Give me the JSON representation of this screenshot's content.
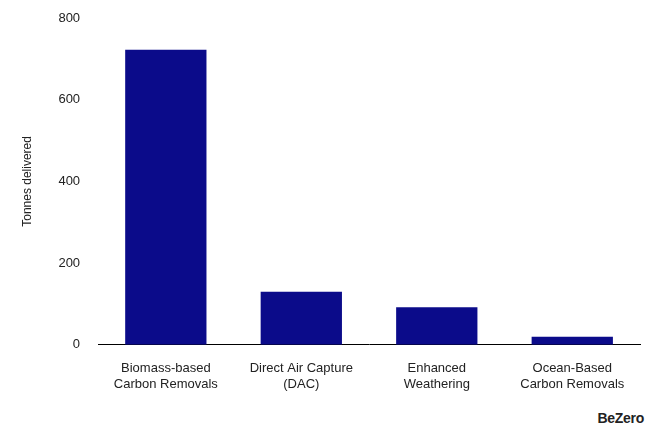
{
  "chart_data": {
    "type": "bar",
    "y_label": "Tonnes delivered",
    "categories": [
      "Biomass-based\nCarbon Removals",
      "Direct Air Capture\n(DAC)",
      "Enhanced\nWeathering",
      "Ocean-Based\nCarbon Removals"
    ],
    "values": [
      722,
      130,
      92,
      20
    ],
    "color": "#0b0b8a",
    "ylim": [
      0,
      800
    ],
    "yticks": [
      0,
      200,
      400,
      600,
      800
    ],
    "grid": false,
    "annotation": "BeZero"
  }
}
